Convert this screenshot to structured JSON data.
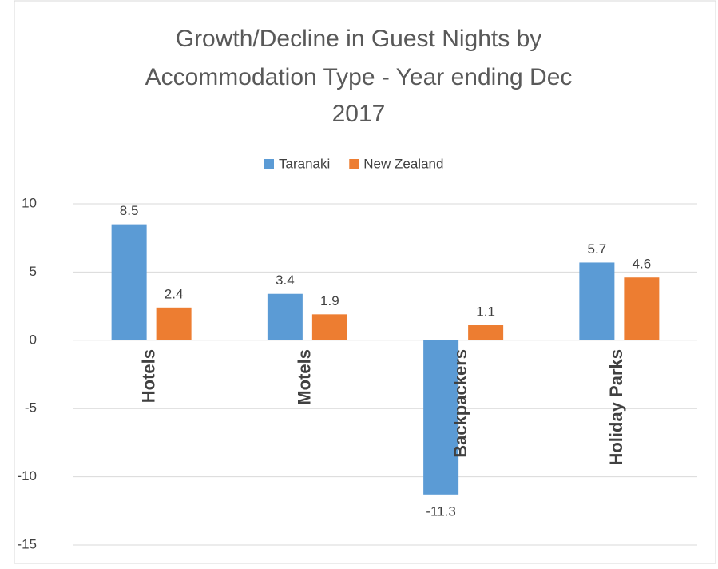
{
  "chart_data": {
    "type": "bar",
    "title": [
      "Growth/Decline in Guest Nights by",
      "Accommodation Type - Year ending Dec",
      "2017"
    ],
    "categories": [
      "Hotels",
      "Motels",
      "Backpackers",
      "Holiday Parks"
    ],
    "series": [
      {
        "name": "Taranaki",
        "color": "#5b9bd5",
        "values": [
          8.5,
          3.4,
          -11.3,
          5.7
        ]
      },
      {
        "name": "New Zealand",
        "color": "#ed7d31",
        "values": [
          2.4,
          1.9,
          1.1,
          4.6
        ]
      }
    ],
    "ylim": [
      -15,
      10
    ],
    "yticks": [
      -15,
      -10,
      -5,
      0,
      5,
      10
    ],
    "grid": true,
    "legend": "top"
  }
}
